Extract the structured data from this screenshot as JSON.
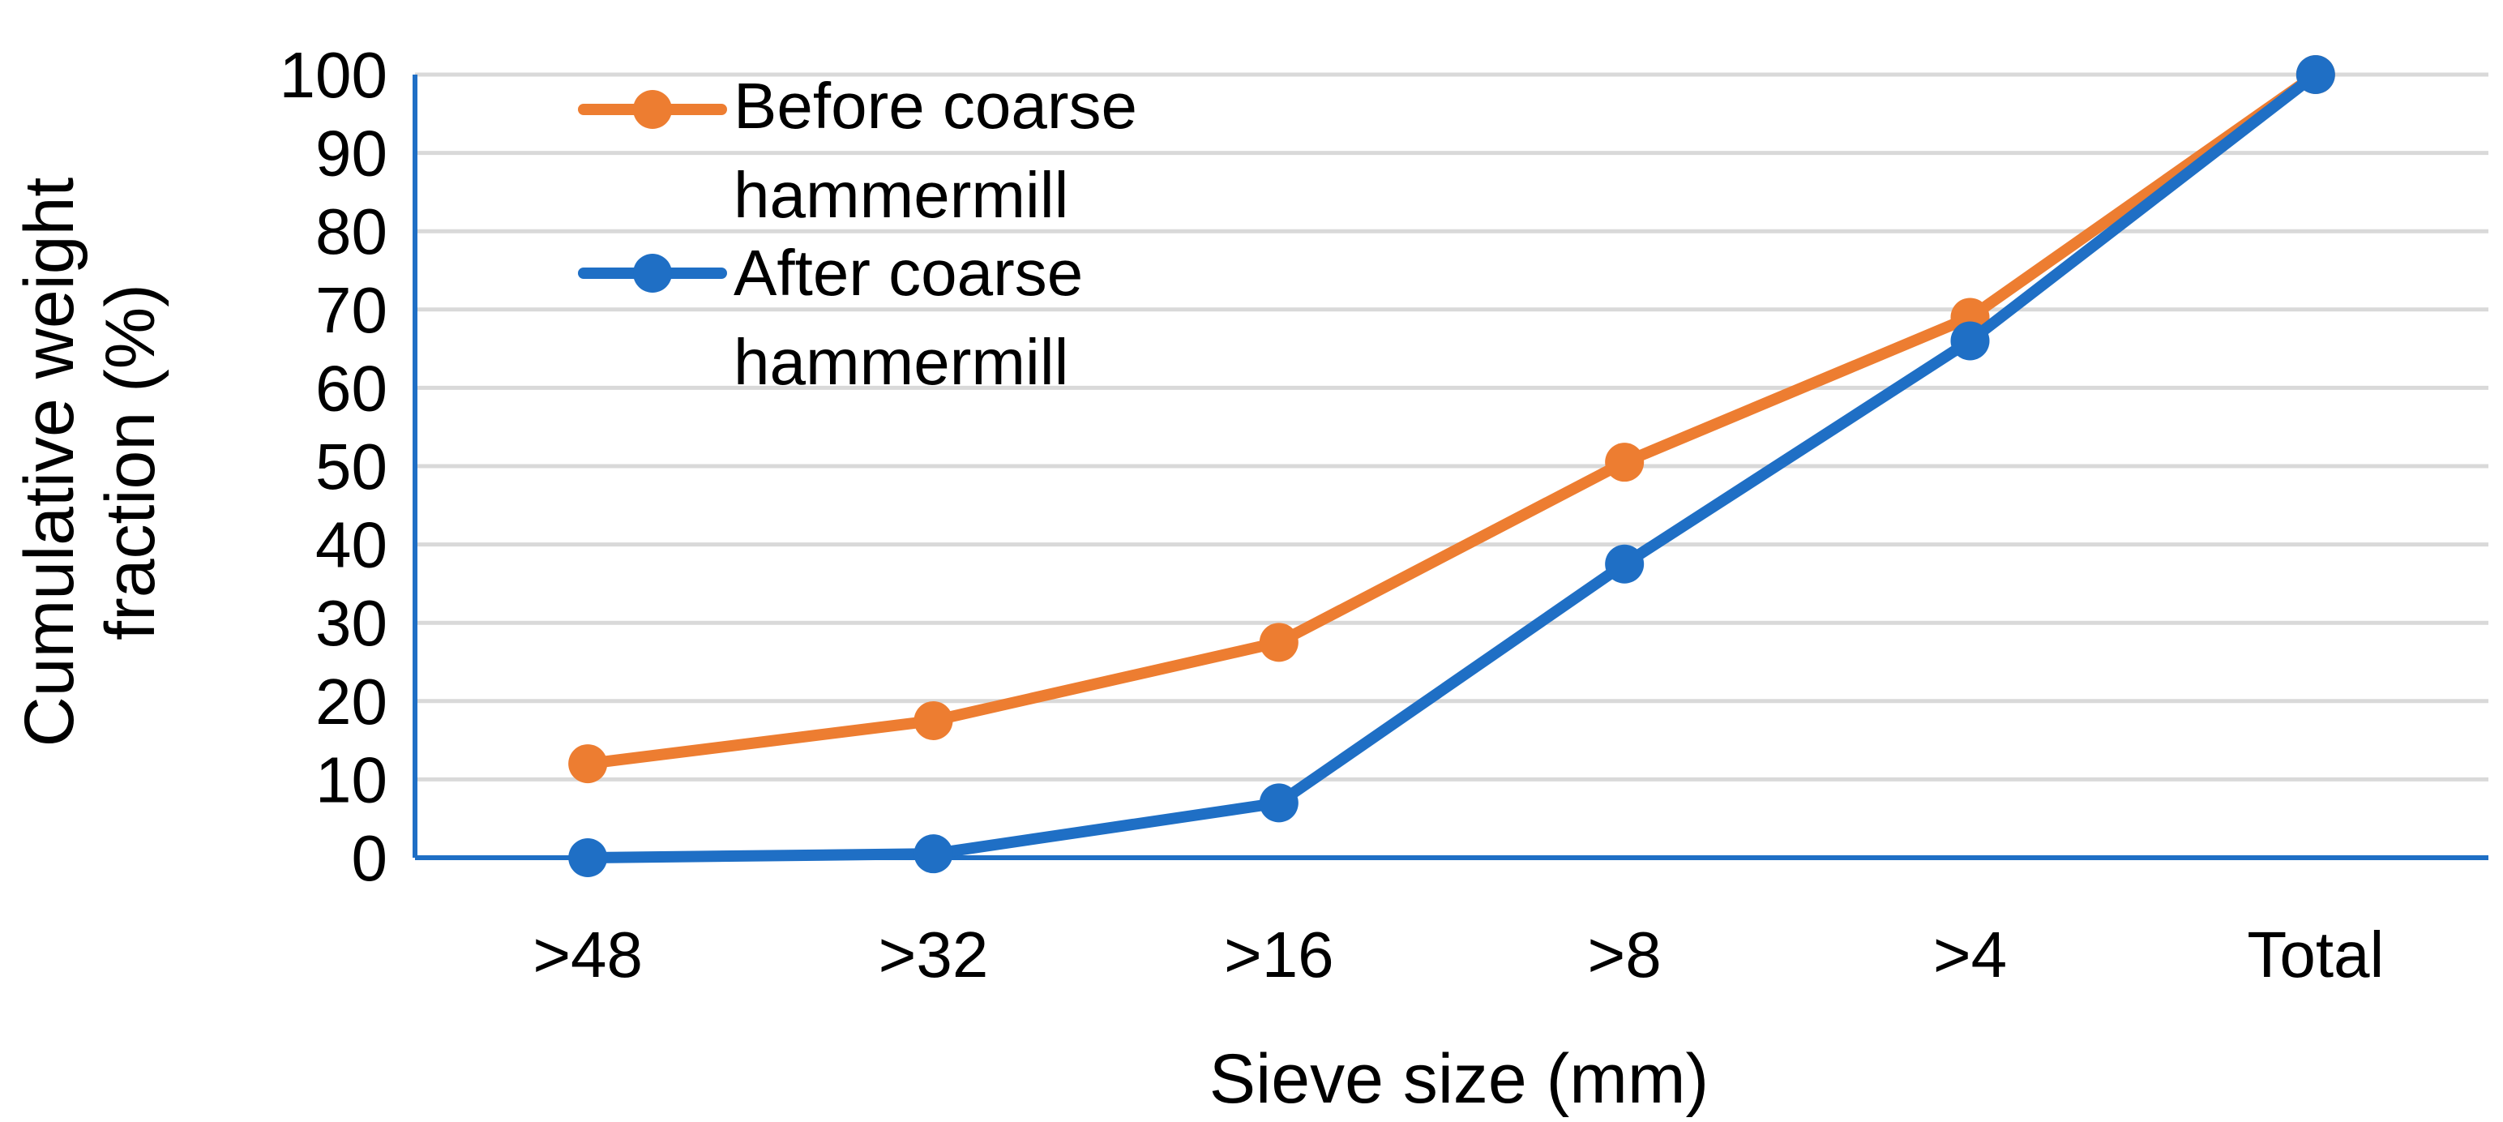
{
  "chart_data": {
    "type": "line",
    "title": "",
    "xlabel": "Sieve size (mm)",
    "ylabel_lines": [
      "Cumulative weight",
      "fraction (%)"
    ],
    "categories": [
      ">48",
      ">32",
      ">16",
      ">8",
      ">4",
      "Total"
    ],
    "ylim": [
      0,
      100
    ],
    "yticks": [
      0,
      10,
      20,
      30,
      40,
      50,
      60,
      70,
      80,
      90,
      100
    ],
    "grid": true,
    "legend_position": "top-left",
    "series": [
      {
        "name_lines": [
          "Before coarse",
          "hammermill"
        ],
        "color": "#ED7D31",
        "values": [
          12,
          17.5,
          27.5,
          50.5,
          69,
          100
        ]
      },
      {
        "name_lines": [
          "After coarse",
          "hammermill"
        ],
        "color": "#1F6FC5",
        "values": [
          0,
          0.5,
          7,
          37.5,
          66,
          100
        ]
      }
    ],
    "axis_color": "#1F6FC5",
    "grid_color": "#D9D9D9"
  }
}
